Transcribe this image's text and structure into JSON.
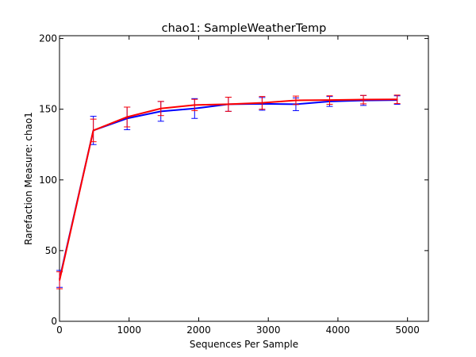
{
  "chart_data": {
    "type": "line",
    "title": "chao1: SampleWeatherTemp",
    "xlabel": "Sequences Per Sample",
    "ylabel": "Rarefaction Measure: chao1",
    "xlim": [
      0,
      5300
    ],
    "ylim": [
      0,
      202
    ],
    "xticks": [
      0,
      1000,
      2000,
      3000,
      4000,
      5000
    ],
    "yticks": [
      0,
      50,
      100,
      150,
      200
    ],
    "grid": false,
    "legend": "none",
    "x": [
      1,
      486,
      971,
      1456,
      1941,
      2426,
      2911,
      3396,
      3881,
      4366,
      4851
    ],
    "series": [
      {
        "color": "#0000ff",
        "values": [
          30,
          135,
          143.5,
          148.5,
          150.5,
          153.5,
          153.8,
          153.5,
          155.5,
          156.2,
          156.5
        ],
        "errors": [
          6,
          10,
          8,
          7,
          7,
          5,
          4.5,
          4.5,
          3.5,
          3.5,
          3
        ]
      },
      {
        "color": "#ff0000",
        "values": [
          29,
          135,
          144.5,
          150.5,
          153,
          153.5,
          154.5,
          156.3,
          156.5,
          156.8,
          157
        ],
        "errors": [
          6,
          8,
          7,
          5,
          4,
          5,
          4.5,
          3,
          3,
          3,
          3
        ]
      }
    ]
  }
}
